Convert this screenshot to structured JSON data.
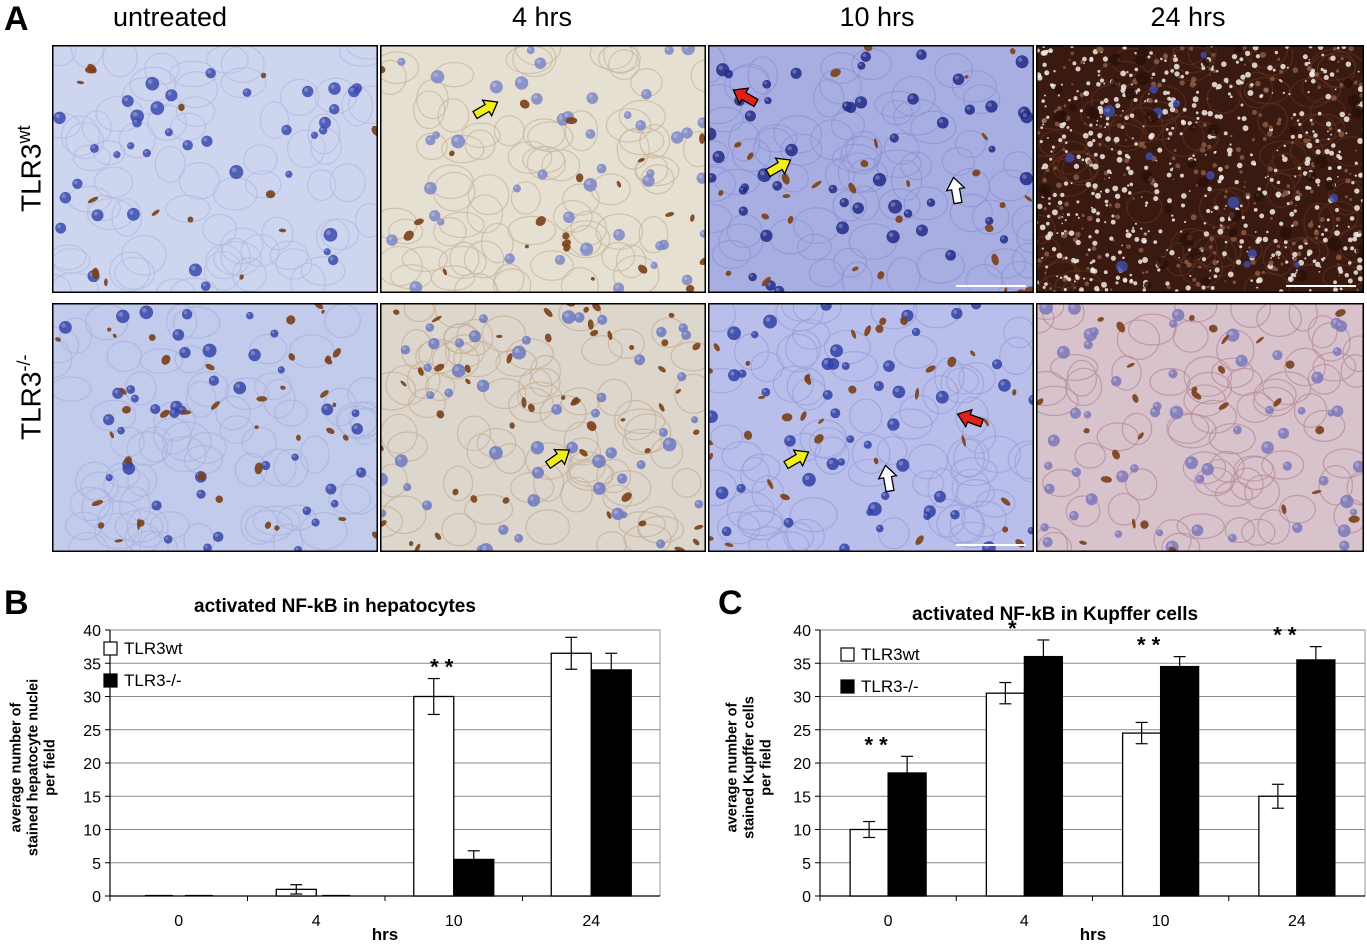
{
  "panel_a": {
    "letter": "A",
    "columns": [
      "untreated",
      "4 hrs",
      "10 hrs",
      "24 hrs"
    ],
    "rows": [
      {
        "base": "TLR3",
        "sup": "wt"
      },
      {
        "base": "TLR3",
        "sup": "-/-"
      }
    ],
    "colors": {
      "hematoxylin_light": "#c6cde6",
      "hematoxylin_nucleus": "#3f4fb0",
      "dab_brown": "#7a3f16",
      "dark_stain": "#3a1a10",
      "arrow_yellow": "#f2ee1a",
      "arrow_red": "#e0201a",
      "arrow_white": "#ffffff"
    }
  },
  "chart_data": [
    {
      "letter": "B",
      "type": "bar",
      "title": "activated NF-kB in hepatocytes",
      "xlabel": "hrs",
      "ylabel_lines": [
        "average number of",
        "stained hepatocyte nuclei",
        "per field"
      ],
      "categories": [
        "0",
        "4",
        "10",
        "24"
      ],
      "ylim": [
        0,
        40
      ],
      "yticks": [
        0,
        5,
        10,
        15,
        20,
        25,
        30,
        35,
        40
      ],
      "grid": true,
      "legend_position": "top-left",
      "series": [
        {
          "name": "TLR3wt",
          "fill": "#ffffff",
          "values": [
            0,
            1,
            30,
            36.5
          ],
          "errors": [
            0,
            0.7,
            2.7,
            2.4
          ]
        },
        {
          "name": "TLR3-/-",
          "fill": "#000000",
          "values": [
            0,
            0,
            5.5,
            34
          ],
          "errors": [
            0,
            0,
            1.3,
            2.5
          ]
        }
      ],
      "annotations": [
        {
          "category": "10",
          "text": "* *"
        }
      ]
    },
    {
      "letter": "C",
      "type": "bar",
      "title": "activated NF-kB in Kupffer cells",
      "xlabel": "hrs",
      "ylabel_lines": [
        "average number of",
        "stained Kupffer cells",
        "per field"
      ],
      "categories": [
        "0",
        "4",
        "10",
        "24"
      ],
      "ylim": [
        0,
        40
      ],
      "yticks": [
        0,
        5,
        10,
        15,
        20,
        25,
        30,
        35,
        40
      ],
      "grid": true,
      "legend_position": "top-left",
      "series": [
        {
          "name": "TLR3wt",
          "fill": "#ffffff",
          "values": [
            10,
            30.5,
            24.5,
            15
          ],
          "errors": [
            1.2,
            1.6,
            1.6,
            1.8
          ]
        },
        {
          "name": "TLR3-/-",
          "fill": "#000000",
          "values": [
            18.5,
            36,
            34.5,
            35.5
          ],
          "errors": [
            2.5,
            2.5,
            1.5,
            2
          ]
        }
      ],
      "annotations": [
        {
          "category": "0",
          "text": "* *"
        },
        {
          "category": "4",
          "text": "*"
        },
        {
          "category": "10",
          "text": "* *"
        },
        {
          "category": "24",
          "text": "* *"
        }
      ]
    }
  ]
}
